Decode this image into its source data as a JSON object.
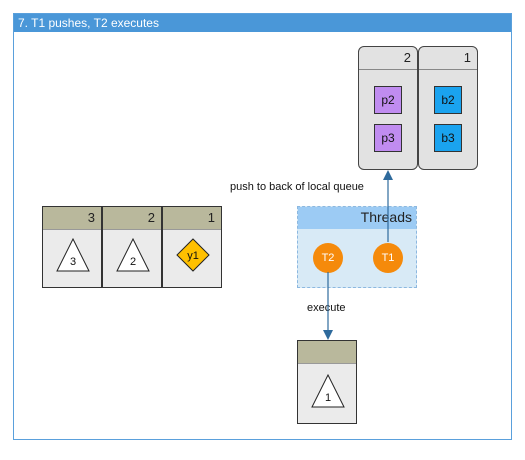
{
  "frame": {
    "title": "7. T1 pushes, T2 executes"
  },
  "local_queues": [
    {
      "id": "2",
      "items": [
        "p2",
        "p3"
      ],
      "item_color": "#c08cf0"
    },
    {
      "id": "1",
      "items": [
        "b2",
        "b3"
      ],
      "item_color": "#1aa3ef"
    }
  ],
  "global_queue": [
    {
      "id": "3",
      "task": "3",
      "shape": "triangle"
    },
    {
      "id": "2",
      "task": "2",
      "shape": "triangle"
    },
    {
      "id": "1",
      "task": "y1",
      "shape": "diamond",
      "color": "#ffc000"
    }
  ],
  "threads": {
    "title": "Threads",
    "items": [
      {
        "name": "T2"
      },
      {
        "name": "T1"
      }
    ],
    "color": "#f58a0b"
  },
  "labels": {
    "push": "push to back of local queue",
    "execute": "execute"
  },
  "executing": {
    "task": "1",
    "shape": "triangle"
  },
  "arrow_color": "#2e6a9c"
}
